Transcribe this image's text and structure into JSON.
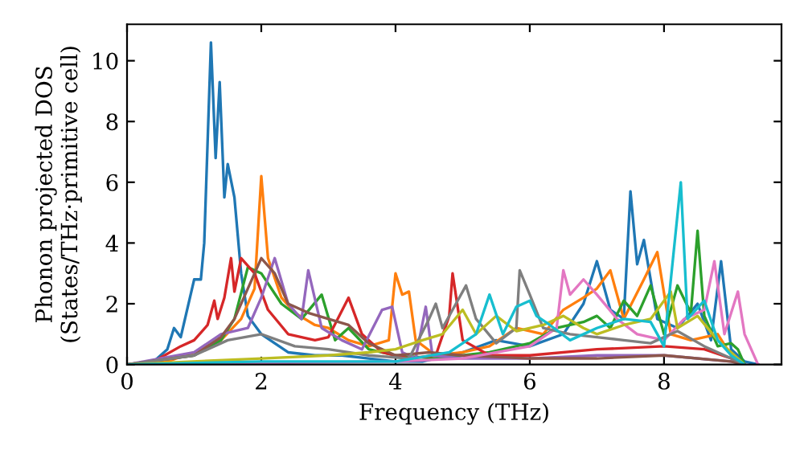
{
  "chart_data": {
    "type": "line",
    "xlabel": "Frequency (THz)",
    "ylabel": "Phonon projected DOS\n(States/THz·primitive cell)",
    "xlim": [
      0,
      9.75
    ],
    "ylim": [
      0,
      11.2
    ],
    "xticks": [
      0,
      2,
      4,
      6,
      8
    ],
    "yticks": [
      0,
      2,
      4,
      6,
      8,
      10
    ],
    "grid": false,
    "legend": false,
    "marker": "none",
    "line_style": "solid",
    "series": [
      {
        "color": "#1f77b4",
        "x": [
          0,
          0.4,
          0.6,
          0.7,
          0.8,
          1.0,
          1.1,
          1.15,
          1.25,
          1.32,
          1.38,
          1.45,
          1.5,
          1.6,
          1.7,
          1.8,
          2.0,
          2.2,
          2.4,
          2.8,
          3.2,
          3.6,
          4.0,
          4.4,
          5.0,
          5.5,
          6.0,
          6.5,
          6.8,
          7.0,
          7.2,
          7.4,
          7.5,
          7.6,
          7.7,
          7.9,
          8.2,
          8.5,
          8.7,
          8.85,
          9.0,
          9.2,
          9.4
        ],
        "values": [
          0,
          0.1,
          0.5,
          1.2,
          0.9,
          2.8,
          2.8,
          4,
          10.6,
          6.8,
          9.3,
          5.5,
          6.6,
          5.5,
          3.0,
          1.6,
          1.0,
          0.7,
          0.4,
          0.3,
          0.3,
          0.2,
          0.1,
          0.1,
          0.4,
          0.8,
          0.6,
          1.0,
          2.0,
          3.4,
          1.8,
          1.5,
          5.7,
          3.3,
          4.1,
          1.5,
          1.2,
          2.0,
          0.8,
          3.4,
          0.5,
          0.1,
          0
        ]
      },
      {
        "color": "#ff7f0e",
        "x": [
          0,
          0.6,
          1.0,
          1.4,
          1.7,
          1.9,
          2.0,
          2.1,
          2.3,
          2.5,
          2.8,
          3.0,
          3.3,
          3.6,
          3.9,
          4.0,
          4.1,
          4.2,
          4.3,
          4.6,
          5.0,
          5.4,
          5.8,
          6.2,
          6.5,
          6.8,
          7.0,
          7.2,
          7.4,
          7.7,
          7.9,
          8.1,
          8.4,
          8.8,
          9.0,
          9.2
        ],
        "values": [
          0,
          0.1,
          0.4,
          0.8,
          1.5,
          2.5,
          6.2,
          3.5,
          2.2,
          1.7,
          1.3,
          1.2,
          0.8,
          0.6,
          0.8,
          3.0,
          2.3,
          2.4,
          0.8,
          0.3,
          0.4,
          0.6,
          1.2,
          1.0,
          1.8,
          2.2,
          2.5,
          3.1,
          1.5,
          2.8,
          3.7,
          1.0,
          0.8,
          1.0,
          0.3,
          0
        ]
      },
      {
        "color": "#2ca02c",
        "x": [
          0,
          1.0,
          1.4,
          1.6,
          1.8,
          2.0,
          2.3,
          2.6,
          2.9,
          3.1,
          3.3,
          3.6,
          4.0,
          4.6,
          5.0,
          5.4,
          6.0,
          6.4,
          6.8,
          7.0,
          7.2,
          7.4,
          7.6,
          7.8,
          8.0,
          8.2,
          8.4,
          8.5,
          8.6,
          8.8,
          9.0,
          9.1,
          9.2
        ],
        "values": [
          0,
          0.3,
          0.8,
          1.5,
          3.2,
          3.0,
          2.0,
          1.5,
          2.3,
          0.8,
          1.2,
          0.5,
          0.3,
          0.2,
          0.3,
          0.4,
          0.7,
          1.2,
          1.4,
          1.6,
          1.2,
          2.1,
          1.6,
          2.6,
          1.0,
          2.6,
          1.7,
          4.4,
          1.6,
          0.6,
          0.7,
          0.5,
          0
        ]
      },
      {
        "color": "#d62728",
        "x": [
          0,
          0.4,
          0.8,
          1.0,
          1.2,
          1.3,
          1.35,
          1.45,
          1.55,
          1.6,
          1.7,
          1.9,
          2.1,
          2.4,
          2.8,
          3.0,
          3.3,
          3.5,
          3.8,
          4.2,
          4.6,
          4.8,
          4.85,
          5.0,
          5.4,
          6.0,
          7.0,
          8.0,
          8.6,
          9.0,
          9.2
        ],
        "values": [
          0,
          0.1,
          0.6,
          0.8,
          1.3,
          2.1,
          1.5,
          2.2,
          3.5,
          2.4,
          3.5,
          3.0,
          1.8,
          1.0,
          0.8,
          0.9,
          2.2,
          1.0,
          0.4,
          0.2,
          0.3,
          1.6,
          3.0,
          0.8,
          0.3,
          0.3,
          0.5,
          0.6,
          0.5,
          0.2,
          0
        ]
      },
      {
        "color": "#9467bd",
        "x": [
          0,
          1.0,
          1.4,
          1.8,
          2.0,
          2.2,
          2.4,
          2.6,
          2.7,
          2.9,
          3.2,
          3.5,
          3.8,
          3.95,
          4.1,
          4.3,
          4.45,
          4.55,
          5.0,
          6.0,
          7.0,
          8.0,
          9.0,
          9.2
        ],
        "values": [
          0,
          0.4,
          1.0,
          1.2,
          2.2,
          3.5,
          2.0,
          1.5,
          3.1,
          1.2,
          0.8,
          0.5,
          1.8,
          1.9,
          0.4,
          0.2,
          1.9,
          0.3,
          0.2,
          0.2,
          0.3,
          0.3,
          0.1,
          0
        ]
      },
      {
        "color": "#8c564b",
        "x": [
          0,
          1.0,
          1.4,
          1.6,
          1.8,
          2.0,
          2.2,
          2.4,
          2.7,
          3.0,
          3.3,
          3.6,
          4.0,
          4.5,
          5.0,
          6.0,
          7.0,
          8.0,
          9.0,
          9.2
        ],
        "values": [
          0,
          0.3,
          0.9,
          1.5,
          2.5,
          3.5,
          3.0,
          2.0,
          1.7,
          1.5,
          1.3,
          0.7,
          0.3,
          0.4,
          0.3,
          0.2,
          0.2,
          0.3,
          0.1,
          0
        ]
      },
      {
        "color": "#e377c2",
        "x": [
          0,
          4.0,
          5.0,
          6.0,
          6.4,
          6.5,
          6.6,
          6.8,
          7.0,
          7.3,
          7.6,
          8.0,
          8.3,
          8.6,
          8.75,
          8.9,
          9.1,
          9.2,
          9.4
        ],
        "values": [
          0,
          0.1,
          0.2,
          0.6,
          1.2,
          3.1,
          2.3,
          2.8,
          2.3,
          1.5,
          1.0,
          0.8,
          1.5,
          1.8,
          3.4,
          1.0,
          2.4,
          1.0,
          0
        ]
      },
      {
        "color": "#7f7f7f",
        "x": [
          0,
          1.0,
          1.5,
          2.0,
          2.5,
          3.0,
          3.6,
          4.2,
          4.5,
          4.6,
          4.7,
          4.9,
          5.05,
          5.2,
          5.5,
          5.8,
          5.85,
          6.0,
          6.2,
          6.6,
          7.0,
          7.4,
          7.8,
          8.2,
          8.6,
          9.0,
          9.2
        ],
        "values": [
          0,
          0.3,
          0.8,
          1.0,
          0.6,
          0.5,
          0.3,
          0.2,
          1.5,
          2.0,
          1.2,
          2.0,
          2.6,
          1.5,
          0.7,
          1.2,
          3.1,
          2.3,
          1.2,
          1.0,
          0.9,
          0.8,
          0.7,
          1.1,
          0.6,
          0.2,
          0
        ]
      },
      {
        "color": "#bcbd22",
        "x": [
          0,
          2.0,
          3.0,
          3.6,
          4.0,
          4.4,
          4.7,
          5.0,
          5.2,
          5.5,
          5.8,
          6.2,
          6.5,
          6.8,
          7.0,
          7.4,
          7.8,
          8.1,
          8.2,
          8.5,
          8.8,
          9.0,
          9.2
        ],
        "values": [
          0,
          0.2,
          0.3,
          0.4,
          0.5,
          0.8,
          1.0,
          1.8,
          1.0,
          1.6,
          1.1,
          1.3,
          1.6,
          1.2,
          1.0,
          1.3,
          1.5,
          2.4,
          1.2,
          1.6,
          0.8,
          0.4,
          0
        ]
      },
      {
        "color": "#17becf",
        "x": [
          0,
          2.0,
          4.0,
          4.8,
          5.2,
          5.4,
          5.6,
          5.8,
          6.0,
          6.1,
          6.3,
          6.6,
          7.0,
          7.4,
          7.8,
          8.0,
          8.25,
          8.35,
          8.6,
          8.8,
          9.0,
          9.2
        ],
        "values": [
          0,
          0.1,
          0.1,
          0.4,
          1.0,
          2.3,
          1.0,
          1.9,
          2.1,
          1.6,
          1.3,
          0.8,
          1.2,
          1.5,
          1.4,
          0.6,
          6.0,
          1.5,
          2.1,
          0.8,
          0.3,
          0
        ]
      }
    ]
  }
}
